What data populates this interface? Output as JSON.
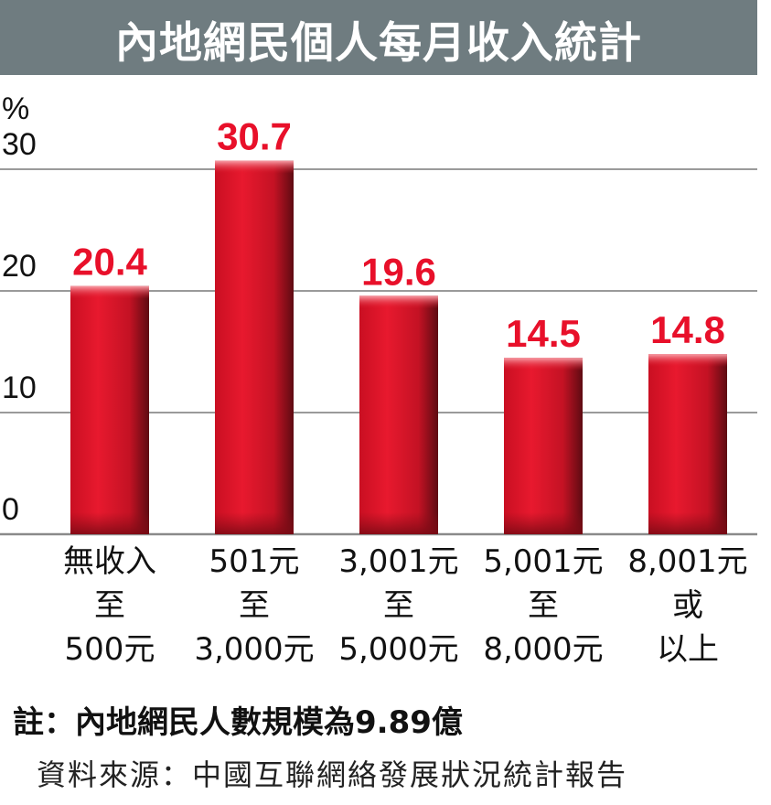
{
  "title": "內地網民個人每月收入統計",
  "note": "註：內地網民人數規模為9.89億",
  "source": "資料來源：中國互聯網絡發展狀況統計報告",
  "colors": {
    "bar": "#e4172b",
    "header_bg": "#6f7c80",
    "value_label": "#e8102a"
  },
  "chart_data": {
    "type": "bar",
    "ylabel": "%",
    "ylim": [
      0,
      30
    ],
    "yticks": [
      0,
      10,
      20,
      30
    ],
    "grid": true,
    "categories": [
      [
        "無收入",
        "至",
        "500元"
      ],
      [
        "501元",
        "至",
        "3,000元"
      ],
      [
        "3,001元",
        "至",
        "5,000元"
      ],
      [
        "5,001元",
        "至",
        "8,000元"
      ],
      [
        "8,001元",
        "或",
        "以上"
      ]
    ],
    "values": [
      20.4,
      30.7,
      19.6,
      14.5,
      14.8
    ],
    "value_labels": [
      "20.4",
      "30.7",
      "19.6",
      "14.5",
      "14.8"
    ]
  }
}
